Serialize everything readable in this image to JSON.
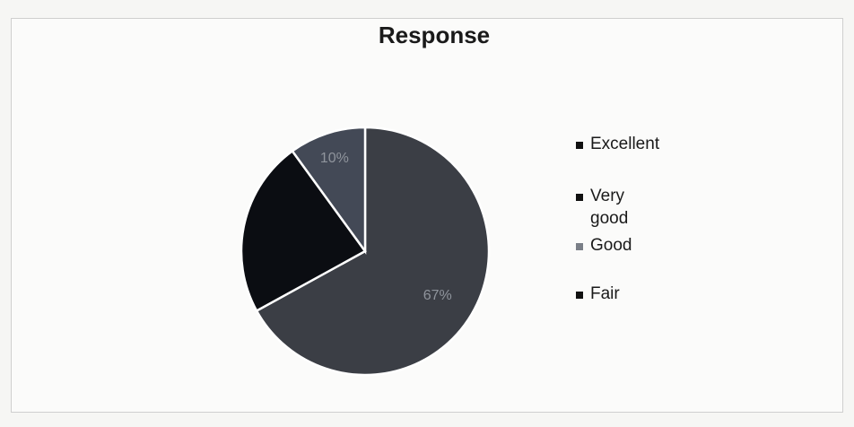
{
  "chart_data": {
    "type": "pie",
    "title": "Response",
    "categories": [
      "Excellent",
      "Very good",
      "Good",
      "Fair"
    ],
    "values": [
      67,
      23,
      10,
      0
    ],
    "data_labels": [
      "67%",
      "",
      "10%",
      ""
    ],
    "colors": [
      "#3b3e45",
      "#0b0d12",
      "#434956",
      "#111111"
    ],
    "legend_position": "right"
  }
}
